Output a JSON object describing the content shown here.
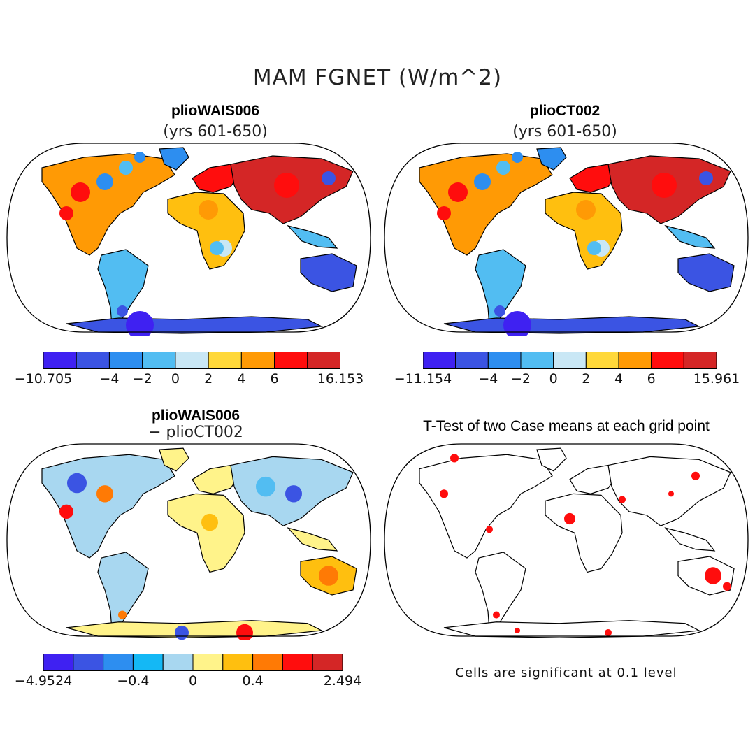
{
  "main_title": "MAM FGNET (W/m^2)",
  "panels": [
    {
      "title": "plioWAIS006",
      "subtitle": "(yrs 601-650)",
      "colorbar": {
        "colors": [
          "#3f21f2",
          "#3b54e3",
          "#2d8ef0",
          "#52bdf2",
          "#c9e7f5",
          "#ffd83a",
          "#ff9a05",
          "#ff0d0d",
          "#d42626"
        ],
        "labels": [
          "−10.705",
          "−4",
          "−2",
          "0",
          "2",
          "4",
          "6",
          "16.153"
        ],
        "label_boundaries": [
          0,
          2,
          3,
          4,
          5,
          6,
          7,
          9
        ]
      }
    },
    {
      "title": "plioCT002",
      "subtitle": "(yrs 601-650)",
      "colorbar": {
        "colors": [
          "#3f21f2",
          "#3b54e3",
          "#2d8ef0",
          "#52bdf2",
          "#c9e7f5",
          "#ffd83a",
          "#ff9a05",
          "#ff0d0d",
          "#d42626"
        ],
        "labels": [
          "−11.154",
          "−4",
          "−2",
          "0",
          "2",
          "4",
          "6",
          "15.961"
        ],
        "label_boundaries": [
          0,
          2,
          3,
          4,
          5,
          6,
          7,
          9
        ]
      }
    },
    {
      "title": "plioWAIS006",
      "subtitle": "− plioCT002",
      "colorbar": {
        "colors": [
          "#3f21f2",
          "#3b54e3",
          "#2d8ef0",
          "#14b8f5",
          "#a8d7f0",
          "#fff38a",
          "#ffbf0f",
          "#ff7a05",
          "#ff0d0d",
          "#d42626"
        ],
        "labels": [
          "−4.9524",
          "−0.4",
          "0",
          "0.4",
          "2.494"
        ],
        "label_boundaries": [
          0,
          3,
          5,
          7,
          10
        ]
      }
    },
    {
      "title": "T-Test of two Case means at each grid point",
      "note": "Cells are significant at 0.1 level"
    }
  ]
}
